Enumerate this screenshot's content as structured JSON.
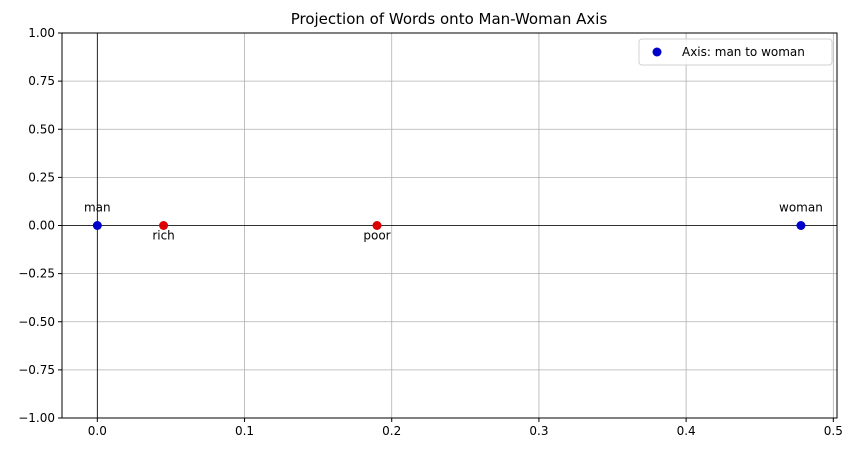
{
  "chart_data": {
    "type": "scatter",
    "title": "Projection of Words onto Man-Woman Axis",
    "xlabel": "",
    "ylabel": "",
    "xlim": [
      -0.024,
      0.5025
    ],
    "ylim": [
      -1.0,
      1.0
    ],
    "xticks": [
      0.0,
      0.1,
      0.2,
      0.3,
      0.4,
      0.5
    ],
    "xtick_labels": [
      "0.0",
      "0.1",
      "0.2",
      "0.3",
      "0.4",
      "0.5"
    ],
    "yticks": [
      1.0,
      0.75,
      0.5,
      0.25,
      0.0,
      -0.25,
      -0.5,
      -0.75,
      -1.0
    ],
    "ytick_labels": [
      "1.00",
      "0.75",
      "0.50",
      "0.25",
      "0.00",
      "−0.25",
      "−0.50",
      "−0.75",
      "−1.00"
    ],
    "grid": true,
    "legend_position": "top-right",
    "reference_lines": {
      "horizontal_y": 0,
      "vertical_x": 0
    },
    "series": [
      {
        "name": "Axis: man to woman",
        "color": "#0000cc",
        "in_legend": true,
        "points": [
          {
            "x": 0.0,
            "y": 0.0,
            "label": "man",
            "label_position": "above"
          },
          {
            "x": 0.478,
            "y": 0.0,
            "label": "woman",
            "label_position": "above"
          }
        ]
      },
      {
        "color": "#dd0000",
        "in_legend": false,
        "points": [
          {
            "x": 0.045,
            "y": 0.0,
            "label": "rich",
            "label_position": "below"
          },
          {
            "x": 0.19,
            "y": 0.0,
            "label": "poor",
            "label_position": "below"
          }
        ]
      }
    ]
  }
}
